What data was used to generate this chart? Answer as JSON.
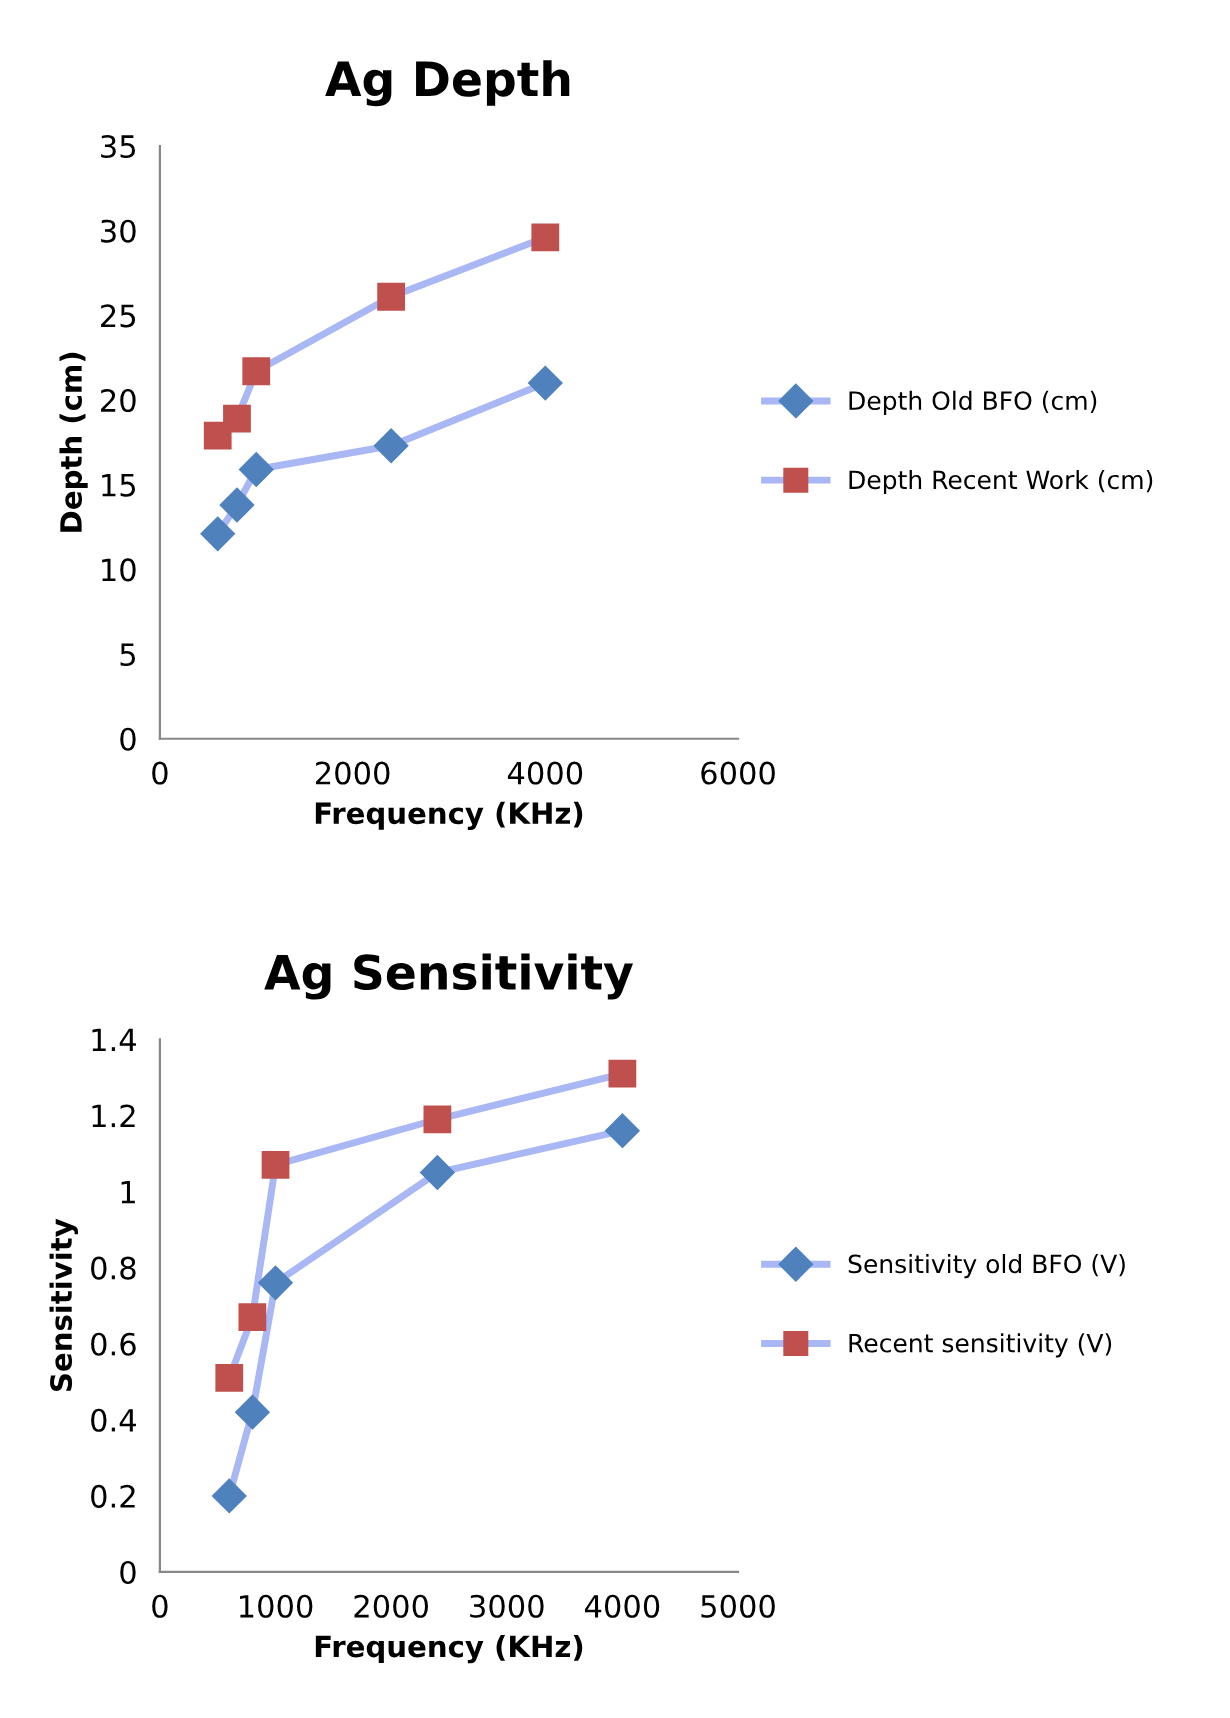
{
  "chart_data": [
    {
      "type": "line",
      "title": "Ag Depth",
      "xlabel": "Frequency (KHz)",
      "ylabel": "Depth (cm)",
      "xlim": [
        0,
        6000
      ],
      "xticks": [
        0,
        2000,
        4000,
        6000
      ],
      "ylim": [
        0,
        35
      ],
      "yticks": [
        0,
        5,
        10,
        15,
        20,
        25,
        30,
        35
      ],
      "grid": false,
      "legend": "right",
      "series": [
        {
          "name": "Depth Old BFO (cm)",
          "color": "#4f81bd",
          "marker": "diamond",
          "x": [
            600,
            800,
            1000,
            2400,
            4000
          ],
          "values": [
            12.1,
            13.8,
            15.9,
            17.3,
            21.0
          ]
        },
        {
          "name": "Depth Recent Work (cm)",
          "color": "#c0504d",
          "marker": "square",
          "x": [
            600,
            800,
            1000,
            2400,
            4000
          ],
          "values": [
            17.9,
            18.9,
            21.7,
            26.1,
            29.6
          ]
        }
      ]
    },
    {
      "type": "line",
      "title": "Ag Sensitivity",
      "xlabel": "Frequency (KHz)",
      "ylabel": "Sensitivity",
      "xlim": [
        0,
        5000
      ],
      "xticks": [
        0,
        1000,
        2000,
        3000,
        4000,
        5000
      ],
      "ylim": [
        0,
        1.4
      ],
      "yticks": [
        0,
        {
          "value": 0.2,
          "label": "0.2"
        },
        {
          "value": 0.4,
          "label": "0.4"
        },
        {
          "value": 0.6,
          "label": "0.6"
        },
        {
          "value": 0.8,
          "label": "0.8"
        },
        1,
        {
          "value": 1.2,
          "label": "1.2"
        },
        {
          "value": 1.4,
          "label": "1.4"
        }
      ],
      "grid": false,
      "legend": "right",
      "series": [
        {
          "name": "Sensitivity old BFO (V)",
          "color": "#4f81bd",
          "marker": "diamond",
          "x": [
            600,
            800,
            1000,
            2400,
            4000
          ],
          "values": [
            0.2,
            0.42,
            0.76,
            1.05,
            1.16
          ]
        },
        {
          "name": "Recent sensitivity (V)",
          "color": "#c0504d",
          "marker": "square",
          "x": [
            600,
            800,
            1000,
            2400,
            4000
          ],
          "values": [
            0.51,
            0.67,
            1.07,
            1.19,
            1.31
          ]
        }
      ]
    }
  ]
}
